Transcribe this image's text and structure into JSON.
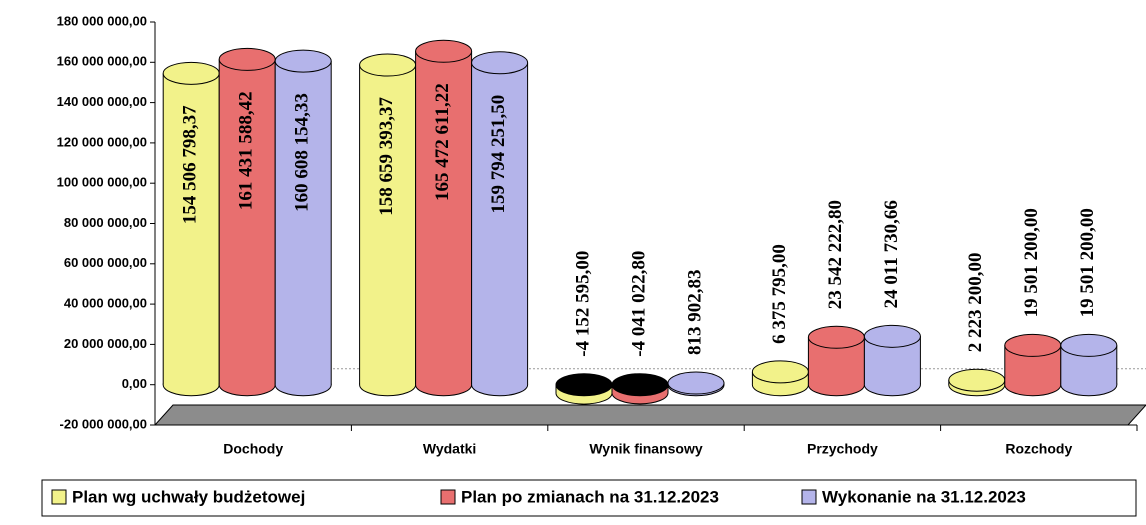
{
  "chart_data": {
    "type": "bar3d",
    "categories": [
      "Dochody",
      "Wydatki",
      "Wynik finansowy",
      "Przychody",
      "Rozchody"
    ],
    "series": [
      {
        "name": "Plan wg uchwały budżetowej",
        "color": "#f2f28a",
        "values": [
          154506798.37,
          158659393.37,
          -4152595.0,
          6375795.0,
          2223200.0
        ],
        "value_labels": [
          "154 506 798,37",
          "158 659 393,37",
          "-4 152 595,00",
          "6 375 795,00",
          "2 223 200,00"
        ]
      },
      {
        "name": "Plan po zmianach na 31.12.2023",
        "color": "#e86f6f",
        "values": [
          161431588.42,
          165472611.22,
          -4041022.8,
          23542222.8,
          19501200.0
        ],
        "value_labels": [
          "161 431 588,42",
          "165 472 611,22",
          "-4 041 022,80",
          "23 542 222,80",
          "19 501 200,00"
        ]
      },
      {
        "name": "Wykonanie na 31.12.2023",
        "color": "#b4b4ea",
        "values": [
          160608154.33,
          159794251.5,
          813902.83,
          24011730.66,
          19501200.0
        ],
        "value_labels": [
          "160 608 154,33",
          "159 794 251,50",
          "813 902,83",
          "24 011 730,66",
          "19 501 200,00"
        ]
      }
    ],
    "ylim": [
      -20000000,
      180000000
    ],
    "yticks": [
      {
        "value": -20000000,
        "label": "-20 000 000,00"
      },
      {
        "value": 0,
        "label": "0,00"
      },
      {
        "value": 20000000,
        "label": "20 000 000,00"
      },
      {
        "value": 40000000,
        "label": "40 000 000,00"
      },
      {
        "value": 60000000,
        "label": "60 000 000,00"
      },
      {
        "value": 80000000,
        "label": "80 000 000,00"
      },
      {
        "value": 100000000,
        "label": "100 000 000,00"
      },
      {
        "value": 120000000,
        "label": "120 000 000,00"
      },
      {
        "value": 140000000,
        "label": "140 000 000,00"
      },
      {
        "value": 160000000,
        "label": "160 000 000,00"
      },
      {
        "value": 180000000,
        "label": "180 000 000,00"
      }
    ],
    "legend": "bottom"
  }
}
